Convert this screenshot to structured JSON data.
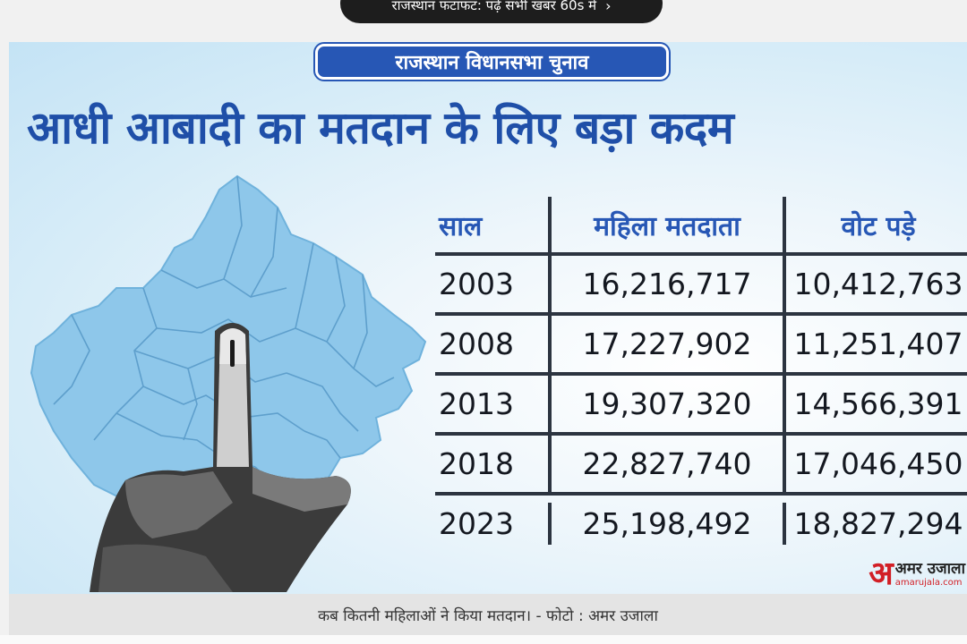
{
  "top_banner": {
    "text": "राजस्थान फटाफट: पढ़ें सभी खबर 60s में",
    "chevron": "chevron-right-icon"
  },
  "graphic": {
    "header_label": "राजस्थान विधानसभा चुनाव",
    "headline": "आधी आबादी का मतदान के लिए बड़ा कदम",
    "table": {
      "headers": [
        "साल",
        "महिला मतदाता",
        "वोट पड़े"
      ],
      "rows": [
        [
          "2003",
          "16,216,717",
          "10,412,763"
        ],
        [
          "2008",
          "17,227,902",
          "11,251,407"
        ],
        [
          "2013",
          "19,307,320",
          "14,566,391"
        ],
        [
          "2018",
          "22,827,740",
          "17,046,450"
        ],
        [
          "2023",
          "25,198,492",
          "18,827,294"
        ]
      ]
    },
    "logo": {
      "mark": "अ",
      "name": "अमर उजाला",
      "domain": "amarujala.com"
    }
  },
  "caption": "कब कितनी महिलाओं ने किया मतदान। - फोटो : अमर उजाला",
  "colors": {
    "accent_blue": "#2757b5",
    "map_blue": "#8ec7ea",
    "logo_red": "#d21f26"
  }
}
